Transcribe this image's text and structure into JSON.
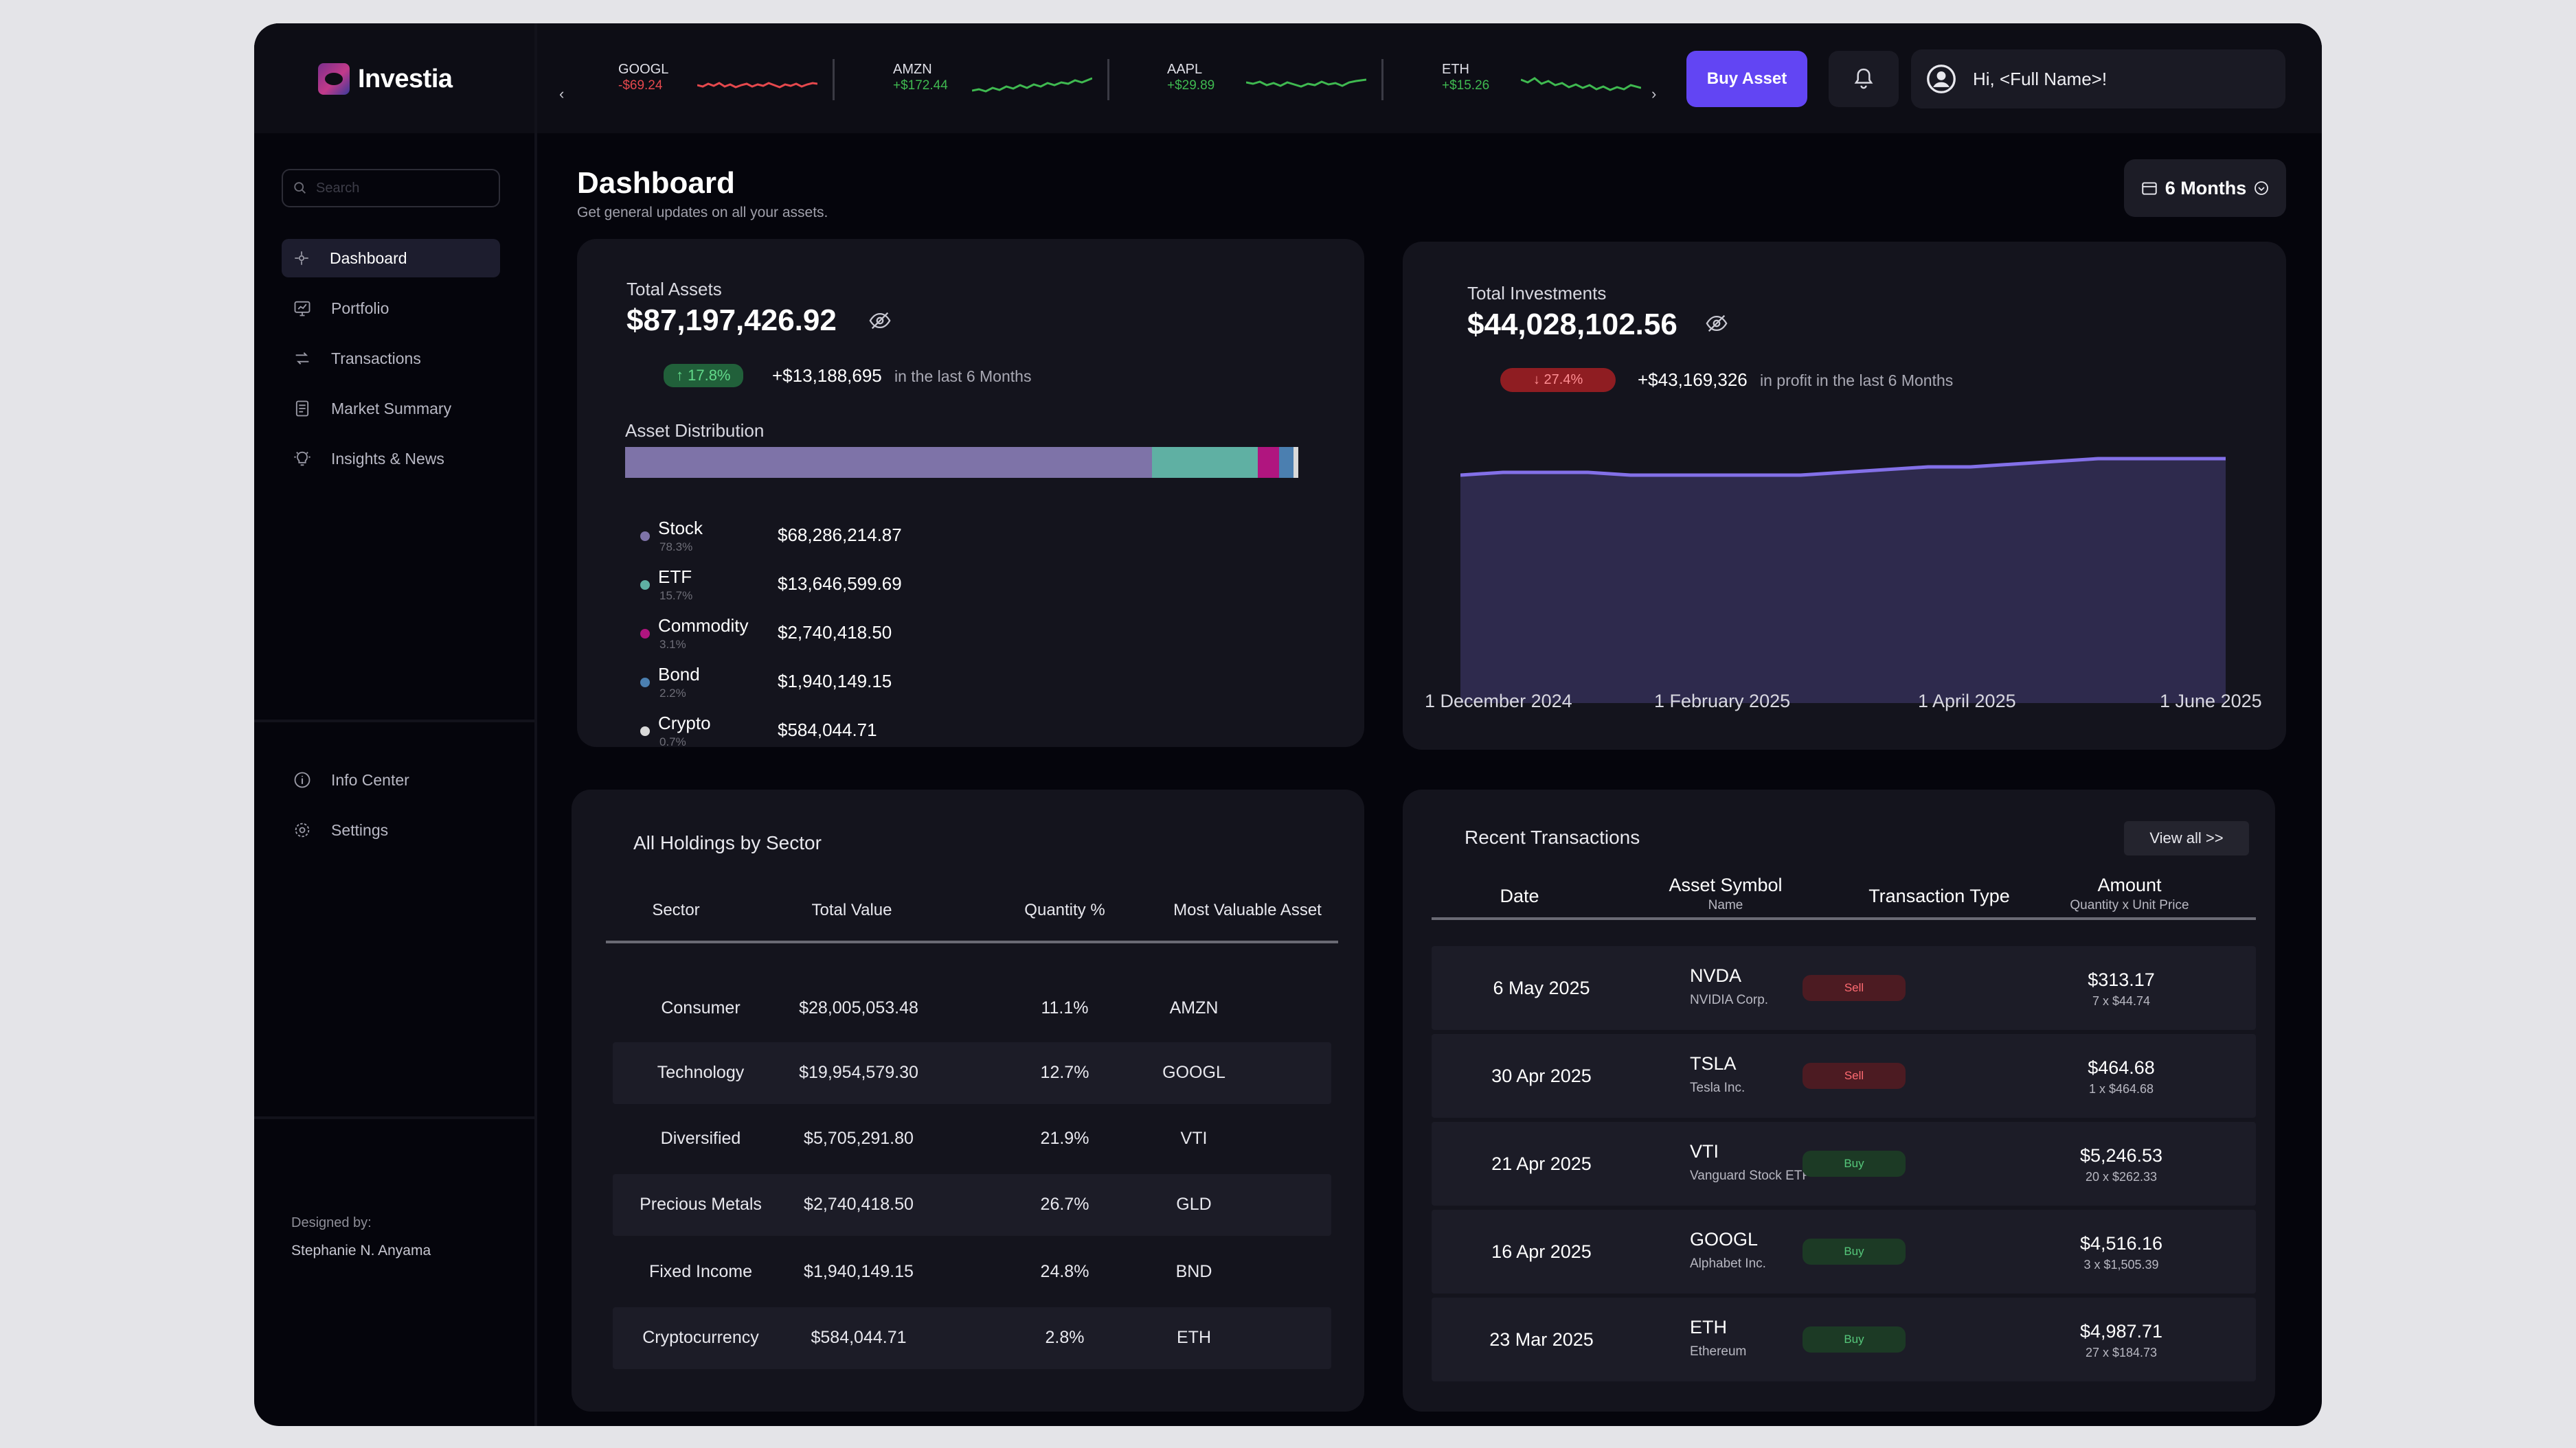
{
  "brand": {
    "name": "Investia"
  },
  "tickers": [
    {
      "symbol": "GOOGL",
      "change": "-$69.24",
      "trend": "down",
      "color": "#e5484d"
    },
    {
      "symbol": "AMZN",
      "change": "+$172.44",
      "trend": "up",
      "color": "#3fb950"
    },
    {
      "symbol": "AAPL",
      "change": "+$29.89",
      "trend": "up",
      "color": "#3fb950"
    },
    {
      "symbol": "ETH",
      "change": "+$15.26",
      "trend": "up",
      "color": "#3fb950"
    }
  ],
  "topbar": {
    "buy_label": "Buy Asset",
    "greeting": "Hi, <Full Name>!"
  },
  "sidebar": {
    "search_placeholder": "Search",
    "items": [
      {
        "label": "Dashboard",
        "icon": "dashboard-icon",
        "active": true
      },
      {
        "label": "Portfolio",
        "icon": "portfolio-icon"
      },
      {
        "label": "Transactions",
        "icon": "transactions-icon"
      },
      {
        "label": "Market Summary",
        "icon": "market-summary-icon"
      },
      {
        "label": "Insights & News",
        "icon": "insights-icon"
      }
    ],
    "bottom_items": [
      {
        "label": "Info Center",
        "icon": "info-icon"
      },
      {
        "label": "Settings",
        "icon": "gear-icon"
      }
    ],
    "designed_by_label": "Designed by:",
    "designer": "Stephanie N. Anyama"
  },
  "header": {
    "title": "Dashboard",
    "subtitle": "Get general updates on all your assets.",
    "period": "6 Months"
  },
  "total_assets": {
    "label": "Total Assets",
    "value": "$87,197,426.92",
    "change_pct": "↑ 17.8%",
    "change_amount": "+$13,188,695",
    "change_note": "in the last 6 Months",
    "distribution_label": "Asset Distribution",
    "distribution": [
      {
        "name": "Stock",
        "pct": "78.3%",
        "share": 78.3,
        "value": "$68,286,214.87",
        "color": "#7e73a8"
      },
      {
        "name": "ETF",
        "pct": "15.7%",
        "share": 15.7,
        "value": "$13,646,599.69",
        "color": "#5fb0a3"
      },
      {
        "name": "Commodity",
        "pct": "3.1%",
        "share": 3.1,
        "value": "$2,740,418.50",
        "color": "#b0157f"
      },
      {
        "name": "Bond",
        "pct": "2.2%",
        "share": 2.2,
        "value": "$1,940,149.15",
        "color": "#4b7fb0"
      },
      {
        "name": "Crypto",
        "pct": "0.7%",
        "share": 0.7,
        "value": "$584,044.71",
        "color": "#d9d9d9"
      }
    ]
  },
  "total_investments": {
    "label": "Total Investments",
    "value": "$44,028,102.56",
    "change_pct": "↓ 27.4%",
    "change_amount": "+$43,169,326",
    "change_note": "in profit in the last 6 Months",
    "chart_data": {
      "type": "area",
      "x_labels": [
        "1 December 2024",
        "1 February 2025",
        "1 April 2025",
        "1 June 2025"
      ],
      "series_color": "#8370e8",
      "fill_color": "#2e2a4d",
      "relative_values": [
        0.83,
        0.84,
        0.84,
        0.84,
        0.83,
        0.83,
        0.83,
        0.83,
        0.83,
        0.84,
        0.85,
        0.86,
        0.86,
        0.87,
        0.88,
        0.89,
        0.89,
        0.89,
        0.89
      ]
    }
  },
  "holdings": {
    "title": "All Holdings by Sector",
    "columns": [
      "Sector",
      "Total Value",
      "Quantity %",
      "Most Valuable Asset"
    ],
    "rows": [
      [
        "Consumer",
        "$28,005,053.48",
        "11.1%",
        "AMZN"
      ],
      [
        "Technology",
        "$19,954,579.30",
        "12.7%",
        "GOOGL"
      ],
      [
        "Diversified",
        "$5,705,291.80",
        "21.9%",
        "VTI"
      ],
      [
        "Precious Metals",
        "$2,740,418.50",
        "26.7%",
        "GLD"
      ],
      [
        "Fixed Income",
        "$1,940,149.15",
        "24.8%",
        "BND"
      ],
      [
        "Cryptocurrency",
        "$584,044.71",
        "2.8%",
        "ETH"
      ]
    ]
  },
  "transactions": {
    "title": "Recent Transactions",
    "view_all": "View all >>",
    "columns": {
      "date": "Date",
      "symbol": "Asset Symbol",
      "symbol_sub": "Name",
      "type": "Transaction Type",
      "amount": "Amount",
      "amount_sub": "Quantity x Unit Price"
    },
    "rows": [
      {
        "date": "6 May 2025",
        "symbol": "NVDA",
        "name": "NVIDIA Corp.",
        "type": "Sell",
        "amount": "$313.17",
        "calc": "7 x $44.74"
      },
      {
        "date": "30 Apr 2025",
        "symbol": "TSLA",
        "name": "Tesla Inc.",
        "type": "Sell",
        "amount": "$464.68",
        "calc": "1 x $464.68"
      },
      {
        "date": "21 Apr 2025",
        "symbol": "VTI",
        "name": "Vanguard Stock ETF",
        "type": "Buy",
        "amount": "$5,246.53",
        "calc": "20 x $262.33"
      },
      {
        "date": "16 Apr 2025",
        "symbol": "GOOGL",
        "name": "Alphabet Inc.",
        "type": "Buy",
        "amount": "$4,516.16",
        "calc": "3 x $1,505.39"
      },
      {
        "date": "23 Mar 2025",
        "symbol": "ETH",
        "name": "Ethereum",
        "type": "Buy",
        "amount": "$4,987.71",
        "calc": "27 x $184.73"
      }
    ]
  }
}
